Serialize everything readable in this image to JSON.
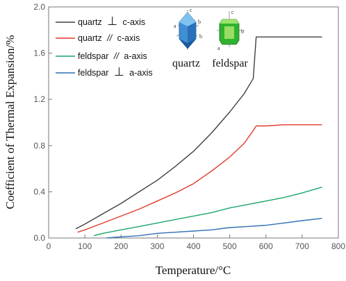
{
  "chart_data": {
    "type": "line",
    "title": "",
    "xlabel": "Temperature/°C",
    "ylabel": "Coefficient of Thermal Expansion/%",
    "xlim": [
      0,
      800
    ],
    "ylim": [
      0,
      2.0
    ],
    "x_ticks": [
      "0",
      "100",
      "200",
      "300",
      "400",
      "500",
      "600",
      "700",
      "800"
    ],
    "y_ticks": [
      "0.0",
      "0.4",
      "0.8",
      "1.2",
      "1.6",
      "2.0"
    ],
    "grid": false,
    "legend_position": "top-left",
    "series": [
      {
        "name": "quartz ⊥ c-axis",
        "color": "#404040",
        "x": [
          75,
          100,
          150,
          200,
          250,
          300,
          350,
          400,
          450,
          500,
          540,
          565,
          573,
          600,
          650,
          700,
          755
        ],
        "y": [
          0.08,
          0.12,
          0.21,
          0.3,
          0.4,
          0.5,
          0.62,
          0.75,
          0.91,
          1.09,
          1.25,
          1.38,
          1.74,
          1.74,
          1.74,
          1.74,
          1.74
        ]
      },
      {
        "name": "quartz // c-axis",
        "color": "#e03a2a",
        "x": [
          80,
          100,
          150,
          200,
          250,
          300,
          350,
          400,
          450,
          500,
          540,
          565,
          573,
          600,
          650,
          700,
          755
        ],
        "y": [
          0.05,
          0.07,
          0.13,
          0.19,
          0.25,
          0.32,
          0.39,
          0.47,
          0.58,
          0.7,
          0.82,
          0.93,
          0.97,
          0.97,
          0.98,
          0.98,
          0.98
        ]
      },
      {
        "name": "feldspar // a-axis",
        "color": "#1aa66b",
        "x": [
          125,
          150,
          200,
          250,
          300,
          350,
          400,
          450,
          500,
          550,
          600,
          650,
          700,
          755
        ],
        "y": [
          0.02,
          0.04,
          0.07,
          0.1,
          0.13,
          0.16,
          0.19,
          0.22,
          0.26,
          0.29,
          0.32,
          0.35,
          0.39,
          0.44
        ]
      },
      {
        "name": "feldspar ⊥ a-axis",
        "color": "#2f6fb5",
        "x": [
          160,
          200,
          250,
          300,
          350,
          400,
          450,
          500,
          550,
          600,
          650,
          700,
          755
        ],
        "y": [
          0.0,
          0.01,
          0.02,
          0.04,
          0.05,
          0.06,
          0.07,
          0.09,
          0.1,
          0.11,
          0.13,
          0.15,
          0.17
        ]
      }
    ],
    "legend": [
      {
        "prefix": "quartz",
        "symbol": "⊥",
        "suffix": "c-axis",
        "color": "#404040"
      },
      {
        "prefix": "quartz",
        "symbol": "//",
        "suffix": "c-axis",
        "color": "#e03a2a"
      },
      {
        "prefix": "feldspar",
        "symbol": "//",
        "suffix": "a-axis",
        "color": "#1aa66b"
      },
      {
        "prefix": "feldspar",
        "symbol": "⊥",
        "suffix": "a-axis",
        "color": "#2f6fb5"
      }
    ],
    "inset": {
      "quartz_label": "quartz",
      "feldspar_label": "feldspar",
      "quartz_axes": [
        "c",
        "b",
        "b",
        "a"
      ],
      "feldspar_axes": [
        "c",
        "b",
        "a"
      ],
      "quartz_icon": "quartz-crystal-icon",
      "feldspar_icon": "feldspar-crystal-icon"
    }
  }
}
